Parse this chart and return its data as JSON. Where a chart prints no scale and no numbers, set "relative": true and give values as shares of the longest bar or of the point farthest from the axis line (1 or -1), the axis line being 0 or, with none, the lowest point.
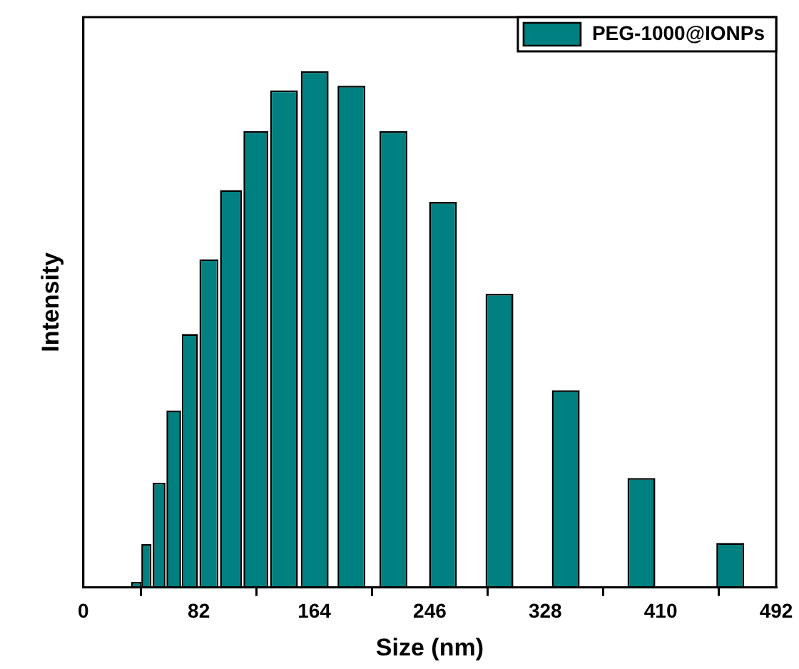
{
  "chart_data": {
    "type": "bar",
    "xlabel": "Size (nm)",
    "ylabel": "Intensity",
    "relative": true,
    "legend": "top right",
    "grid": false,
    "x": [
      37.6,
      44.8,
      53.8,
      64.2,
      75.7,
      89.2,
      104.9,
      122.5,
      142.5,
      164.3,
      190.4,
      220.2,
      255.4,
      295.5,
      342.6,
      396.3,
      459.4
    ],
    "xlim": [
      0,
      492
    ],
    "xticks": [
      0,
      82,
      164,
      246,
      328,
      410,
      492
    ],
    "series": [
      {
        "name": "PEG-1000@IONPs",
        "color": "#008080",
        "values": [
          0.011,
          0.084,
          0.203,
          0.343,
          0.491,
          0.636,
          0.77,
          0.884,
          0.963,
          1,
          0.972,
          0.884,
          0.747,
          0.569,
          0.382,
          0.212,
          0.086
        ]
      }
    ]
  }
}
